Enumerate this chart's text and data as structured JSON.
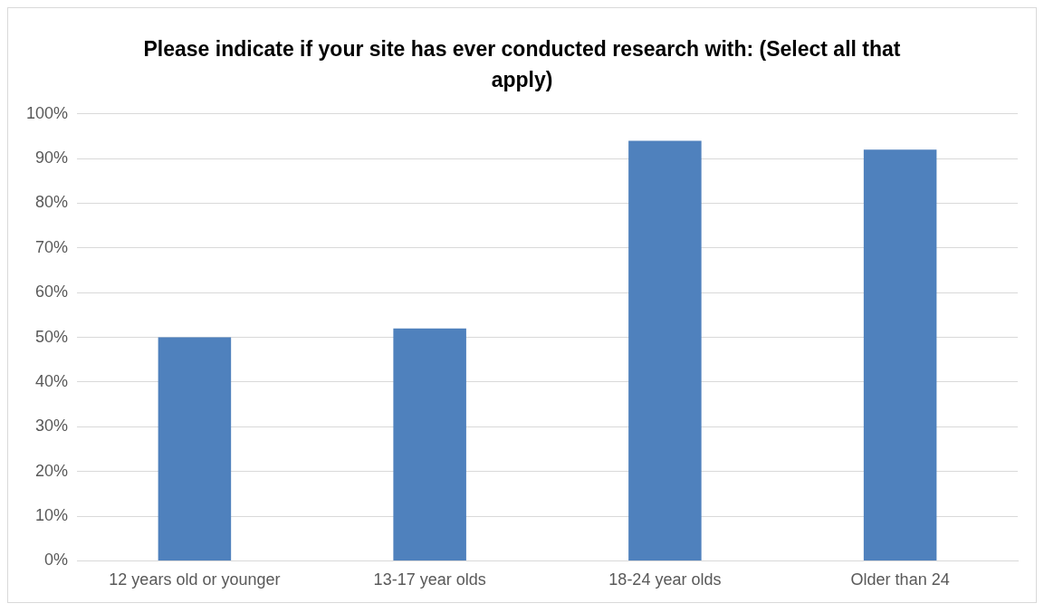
{
  "chart_data": {
    "type": "bar",
    "title": "Please indicate if your site has ever conducted research with: (Select all that apply)",
    "categories": [
      "12 years old or younger",
      "13-17 year olds",
      "18-24 year olds",
      "Older than 24"
    ],
    "values": [
      50,
      52,
      94,
      92
    ],
    "color": "#4f81bd",
    "ylim": [
      0,
      100
    ],
    "yticks": [
      {
        "value": 0,
        "label": "0%"
      },
      {
        "value": 10,
        "label": "10%"
      },
      {
        "value": 20,
        "label": "20%"
      },
      {
        "value": 30,
        "label": "30%"
      },
      {
        "value": 40,
        "label": "40%"
      },
      {
        "value": 50,
        "label": "50%"
      },
      {
        "value": 60,
        "label": "60%"
      },
      {
        "value": 70,
        "label": "70%"
      },
      {
        "value": 80,
        "label": "80%"
      },
      {
        "value": 90,
        "label": "90%"
      },
      {
        "value": 100,
        "label": "100%"
      }
    ],
    "grid": "y",
    "legend": false
  }
}
